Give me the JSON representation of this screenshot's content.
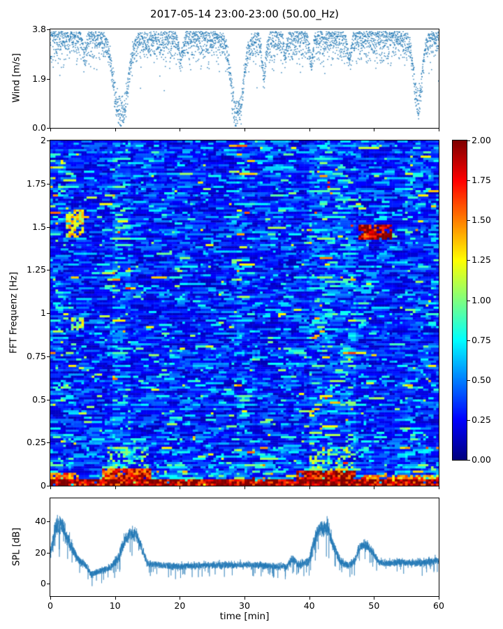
{
  "title": "2017-05-14 23:00-23:00 (50.00_Hz)",
  "chart_data": [
    {
      "type": "scatter",
      "name": "wind-speed",
      "ylabel": "Wind [m/s]",
      "xlim": [
        0,
        60
      ],
      "ylim": [
        0,
        3.8
      ],
      "yticks": [
        0,
        1.9,
        3.8
      ],
      "yticklabels": [
        "0.0",
        "1.9",
        "3.8"
      ],
      "color": "#1f77b4",
      "ceiling": 3.72,
      "typical_band": [
        2.7,
        3.7
      ],
      "dips": [
        {
          "t": 10.9,
          "width": 2.8,
          "min": 0.55
        },
        {
          "t": 28.9,
          "width": 2.4,
          "min": 0.5
        },
        {
          "t": 56.8,
          "width": 1.7,
          "min": 0.85
        },
        {
          "t": 20.2,
          "width": 0.9,
          "min": 2.1
        },
        {
          "t": 33.0,
          "width": 0.8,
          "min": 1.6
        },
        {
          "t": 40.3,
          "width": 0.7,
          "min": 1.9
        },
        {
          "t": 5.3,
          "width": 0.7,
          "min": 2.3
        },
        {
          "t": 46.2,
          "width": 0.8,
          "min": 2.1
        },
        {
          "t": 36.3,
          "width": 0.6,
          "min": 2.2
        }
      ]
    },
    {
      "type": "heatmap",
      "name": "fft-spectrogram",
      "ylabel": "FFT Frequenz [Hz]",
      "xlim": [
        0,
        60
      ],
      "ylim": [
        0,
        2
      ],
      "yticks": [
        2,
        1.75,
        1.5,
        1.25,
        1,
        0.75,
        0.5,
        0.25,
        0
      ],
      "yticklabels": [
        "2",
        "1.75",
        "1.5",
        "1.25",
        "1",
        "0.75",
        "0.5",
        "0.25",
        "0"
      ],
      "colormap": "jet",
      "clim": [
        0,
        2
      ],
      "colorbar_ticks": [
        2,
        1.75,
        1.5,
        1.25,
        1,
        0.75,
        0.5,
        0.25,
        0
      ],
      "colorbar_ticklabels": [
        "2.00",
        "1.75",
        "1.50",
        "1.25",
        "1.00",
        "0.75",
        "0.50",
        "0.25",
        "0.00"
      ],
      "low_freq_boost": {
        "scale": 0.8,
        "decay": 0.09
      },
      "column_boosts": [
        {
          "x": [
            0,
            2
          ],
          "gain": 1.2
        },
        {
          "x": [
            9.5,
            12.5
          ],
          "gain": 1.3
        },
        {
          "x": [
            29,
            31.5
          ],
          "gain": 1.15
        },
        {
          "x": [
            40,
            47
          ],
          "gain": 1.3
        },
        {
          "x": [
            55,
            60
          ],
          "gain": 1.12
        }
      ],
      "features": [
        {
          "x": [
            2.5,
            5.2
          ],
          "y": [
            1.44,
            1.6
          ],
          "value": 1.25,
          "density": 0.7,
          "label": "green-yellow patch"
        },
        {
          "x": [
            3.3,
            5.0
          ],
          "y": [
            0.9,
            0.97
          ],
          "value": 1.1,
          "density": 0.7,
          "label": "yellow streak"
        },
        {
          "x": [
            47.6,
            52.6
          ],
          "y": [
            1.43,
            1.51
          ],
          "value": 1.85,
          "density": 0.9,
          "label": "red streak"
        },
        {
          "x": [
            0,
            60
          ],
          "y": [
            0,
            0.04
          ],
          "value": 1.9,
          "density": 0.95,
          "label": "low-frequency band"
        },
        {
          "x": [
            8,
            15.5
          ],
          "y": [
            0.03,
            0.1
          ],
          "value": 1.7,
          "density": 0.9,
          "label": "low-freq blob"
        },
        {
          "x": [
            38,
            47
          ],
          "y": [
            0.03,
            0.09
          ],
          "value": 1.8,
          "density": 0.9,
          "label": "low-freq blob"
        },
        {
          "x": [
            0,
            4.5
          ],
          "y": [
            0.03,
            0.08
          ],
          "value": 1.5,
          "density": 0.85,
          "label": "low-freq blob"
        },
        {
          "x": [
            48,
            60
          ],
          "y": [
            0.02,
            0.06
          ],
          "value": 1.45,
          "density": 0.8,
          "label": "low-freq band"
        },
        {
          "x": [
            9,
            15
          ],
          "y": [
            0.1,
            0.22
          ],
          "value": 1.0,
          "density": 0.3,
          "label": "cyan-green speckle"
        },
        {
          "x": [
            40,
            47
          ],
          "y": [
            0.09,
            0.22
          ],
          "value": 1.05,
          "density": 0.3,
          "label": "cyan-green speckle"
        }
      ]
    },
    {
      "type": "line",
      "name": "spl",
      "ylabel": "SPL [dB]",
      "xlabel": "time [min]",
      "xlim": [
        0,
        60
      ],
      "ylim": [
        -8,
        55
      ],
      "yticks": [
        0,
        20,
        40
      ],
      "yticklabels": [
        "0",
        "20",
        "40"
      ],
      "xticks": [
        0,
        10,
        20,
        30,
        40,
        50,
        60
      ],
      "xticklabels": [
        "0",
        "10",
        "20",
        "30",
        "40",
        "50",
        "60"
      ],
      "color": "#1f77b4",
      "envelope": [
        [
          0,
          20,
          8
        ],
        [
          0.9,
          36,
          12
        ],
        [
          1.8,
          38,
          10
        ],
        [
          2.6,
          30,
          8
        ],
        [
          3.5,
          22,
          7
        ],
        [
          4.5,
          15,
          5
        ],
        [
          5.5,
          12,
          4
        ],
        [
          6.3,
          6,
          4
        ],
        [
          7.5,
          8,
          4
        ],
        [
          9,
          10,
          4
        ],
        [
          10.5,
          16,
          6
        ],
        [
          11.5,
          28,
          7
        ],
        [
          12.3,
          32,
          7
        ],
        [
          13.3,
          32,
          7
        ],
        [
          14.2,
          22,
          6
        ],
        [
          15,
          13,
          4
        ],
        [
          17,
          12,
          4
        ],
        [
          20,
          11,
          4
        ],
        [
          24,
          12,
          4
        ],
        [
          28,
          12,
          4
        ],
        [
          32,
          12,
          4
        ],
        [
          35,
          11,
          4
        ],
        [
          36.5,
          11,
          4
        ],
        [
          37.5,
          16,
          5
        ],
        [
          38.5,
          12,
          4
        ],
        [
          40,
          15,
          6
        ],
        [
          41,
          30,
          8
        ],
        [
          41.8,
          36,
          9
        ],
        [
          42.8,
          36,
          9
        ],
        [
          43.8,
          24,
          7
        ],
        [
          44.8,
          14,
          5
        ],
        [
          46,
          12,
          4
        ],
        [
          47,
          15,
          5
        ],
        [
          47.8,
          24,
          6
        ],
        [
          48.8,
          25,
          6
        ],
        [
          49.8,
          20,
          5
        ],
        [
          50.8,
          14,
          4
        ],
        [
          52,
          13,
          4
        ],
        [
          54,
          14,
          4
        ],
        [
          56,
          13,
          4
        ],
        [
          58,
          14,
          4
        ],
        [
          60,
          15,
          5
        ]
      ]
    }
  ]
}
